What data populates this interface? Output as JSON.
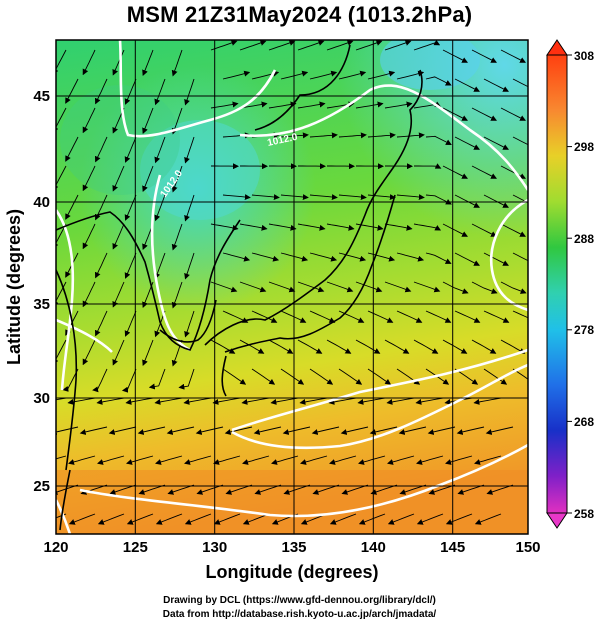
{
  "title": "MSM 21Z31May2024 (1013.2hPa)",
  "x_axis": {
    "label": "Longitude (degrees)",
    "ticks": [
      "120",
      "125",
      "130",
      "135",
      "140",
      "145",
      "150"
    ],
    "range": [
      120,
      150
    ]
  },
  "y_axis": {
    "label": "Latitude  (degrees)",
    "ticks": [
      "25",
      "30",
      "35",
      "40",
      "45"
    ],
    "range": [
      22.4,
      47.6
    ]
  },
  "colorbar": {
    "ticks": [
      "308",
      "298",
      "288",
      "278",
      "268",
      "258"
    ],
    "range": [
      258,
      308
    ]
  },
  "contour_labels": [
    "1012.0",
    "1012.0"
  ],
  "credits": [
    "Drawing by DCL (https://www.gfd-dennou.org/library/dcl/)",
    "Data from http://database.rish.kyoto-u.ac.jp/arch/jmadata/"
  ]
}
